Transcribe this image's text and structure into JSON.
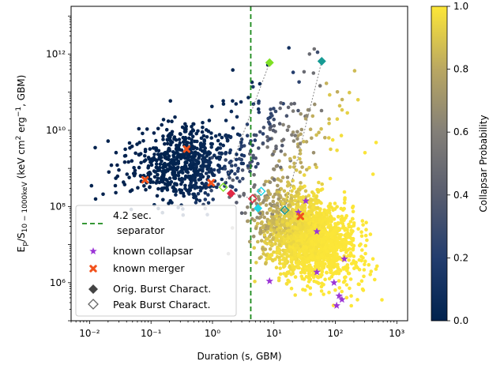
{
  "chart_data": {
    "type": "scatter",
    "title": "",
    "xlabel": "Duration (s, GBM)",
    "ylabel": "E_p/S_{10-1000keV} (keV cm² erg⁻¹, GBM)",
    "x_scale": "log",
    "y_scale": "log",
    "xlim": [
      0.005,
      1500
    ],
    "ylim": [
      100000.0,
      18000000000000.0
    ],
    "x_ticks": [
      {
        "value": 0.01,
        "label": "10⁻²"
      },
      {
        "value": 0.1,
        "label": "10⁻¹"
      },
      {
        "value": 1,
        "label": "10⁰"
      },
      {
        "value": 10,
        "label": "10¹"
      },
      {
        "value": 100,
        "label": "10²"
      },
      {
        "value": 1000,
        "label": "10³"
      }
    ],
    "y_ticks": [
      {
        "value": 1000000.0,
        "label": "10⁶"
      },
      {
        "value": 100000000.0,
        "label": "10⁸"
      },
      {
        "value": 10000000000.0,
        "label": "10¹⁰"
      },
      {
        "value": 1000000000000.0,
        "label": "10¹²"
      }
    ],
    "separator": {
      "x": 4.2,
      "label_line1": "4.2 sec.",
      "label_line2": "separator",
      "color": "#1a8a1a"
    },
    "colorbar": {
      "label": "Collapsar Probability",
      "range": [
        0.0,
        1.0
      ],
      "ticks": [
        "0.0",
        "0.2",
        "0.4",
        "0.6",
        "0.8",
        "1.0"
      ],
      "colormap": "cividis"
    },
    "legend": {
      "placement": "lower-left",
      "entries": [
        {
          "label_line1": "4.2 sec.",
          "label_line2": "separator",
          "marker": "dashed-line"
        },
        {
          "label": "known collapsar",
          "marker": "star",
          "color": "#9b35d6"
        },
        {
          "label": "known merger",
          "marker": "x",
          "color": "#f2511b"
        },
        {
          "label": "Orig. Burst Charact.",
          "marker": "filled-diamond",
          "color": "#444444"
        },
        {
          "label": "Peak Burst Charact.",
          "marker": "open-diamond",
          "color": "#666666"
        }
      ]
    },
    "known_collapsars": [
      {
        "x": 8.5,
        "y": 1100000.0
      },
      {
        "x": 25,
        "y": 70000000.0
      },
      {
        "x": 33,
        "y": 140000000.0
      },
      {
        "x": 50,
        "y": 22000000.0
      },
      {
        "x": 50,
        "y": 1900000.0
      },
      {
        "x": 95,
        "y": 1000000.0
      },
      {
        "x": 115,
        "y": 450000.0
      },
      {
        "x": 105,
        "y": 250000.0
      },
      {
        "x": 128,
        "y": 360000.0
      },
      {
        "x": 140,
        "y": 4200000.0
      }
    ],
    "known_mergers": [
      {
        "x": 0.08,
        "y": 500000000.0
      },
      {
        "x": 0.38,
        "y": 3200000000.0
      },
      {
        "x": 0.95,
        "y": 420000000.0
      },
      {
        "x": 27,
        "y": 55000000.0
      }
    ],
    "burst_pairs": [
      {
        "orig": {
          "x": 8.5,
          "y": 600000000000.0
        },
        "peak": {
          "x": 1.5,
          "y": 320000000.0
        },
        "color": "#7fe024"
      },
      {
        "orig": {
          "x": 60,
          "y": 650000000000.0
        },
        "peak": {
          "x": 15,
          "y": 80000000.0
        },
        "color": "#179b94"
      },
      {
        "orig": {
          "x": 5.5,
          "y": 90000000.0
        },
        "peak": {
          "x": 6.2,
          "y": 250000000.0
        },
        "color": "#1fd6e6"
      },
      {
        "orig": {
          "x": 2,
          "y": 220000000.0
        },
        "peak": {
          "x": 4.5,
          "y": 160000000.0
        },
        "color": "#e02846"
      }
    ]
  }
}
